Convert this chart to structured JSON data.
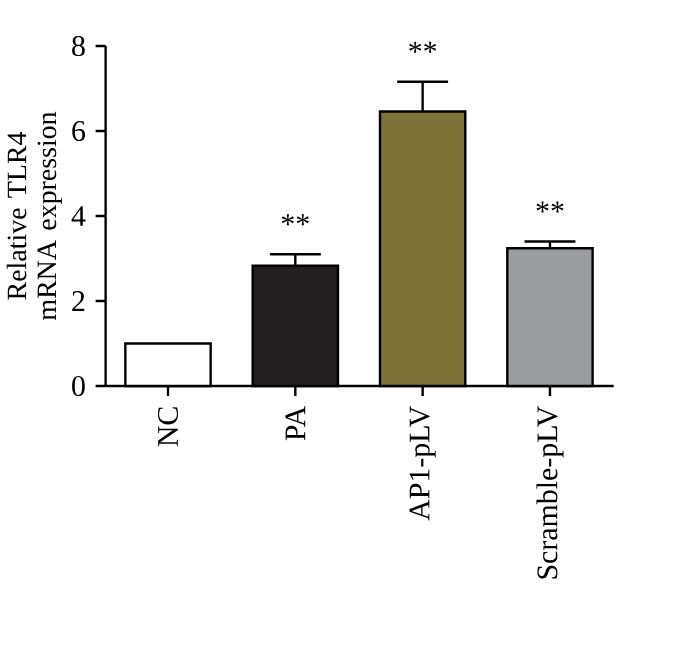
{
  "chart_data": {
    "type": "bar",
    "ylabel": "Relative TLR4 mRNA expression",
    "categories": [
      "NC",
      "PA",
      "AP1-pLV",
      "Scramble-pLV"
    ],
    "values": [
      1.0,
      2.83,
      6.46,
      3.24
    ],
    "errors": [
      null,
      0.27,
      0.7,
      0.16
    ],
    "colors": [
      "#ffffff",
      "#231f20",
      "#7e7338",
      "#9a9c9f"
    ],
    "ylim": [
      0,
      8
    ],
    "yticks": [
      0,
      2,
      4,
      6,
      8
    ],
    "grid": false,
    "annotations": [
      "**",
      "**",
      "**"
    ]
  }
}
